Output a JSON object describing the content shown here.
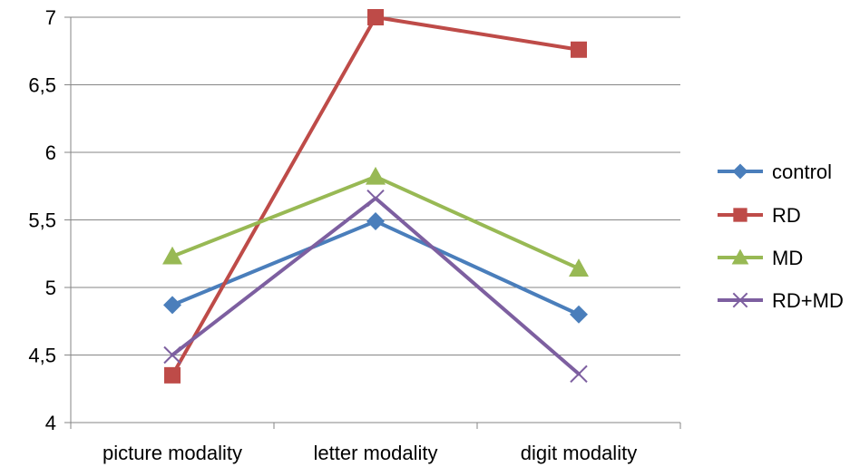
{
  "chart_data": {
    "type": "line",
    "categories": [
      "picture modality",
      "letter modality",
      "digit modality"
    ],
    "series": [
      {
        "name": "control",
        "values": [
          4.87,
          5.49,
          4.8
        ],
        "color": "#4a7ebb",
        "marker": "diamond"
      },
      {
        "name": "RD",
        "values": [
          4.35,
          7.0,
          6.76
        ],
        "color": "#be4b48",
        "marker": "square"
      },
      {
        "name": "MD",
        "values": [
          5.23,
          5.82,
          5.14
        ],
        "color": "#98b954",
        "marker": "triangle"
      },
      {
        "name": "RD+MD",
        "values": [
          4.5,
          5.66,
          4.36
        ],
        "color": "#7d5fa0",
        "marker": "x"
      }
    ],
    "title": "",
    "xlabel": "",
    "ylabel": "",
    "ylim": [
      4,
      7
    ],
    "yticks": [
      "4",
      "4,5",
      "5",
      "5,5",
      "6",
      "6,5",
      "7"
    ],
    "ytick_values": [
      4,
      4.5,
      5,
      5.5,
      6,
      6.5,
      7
    ],
    "grid": true,
    "legend_position": "right"
  }
}
